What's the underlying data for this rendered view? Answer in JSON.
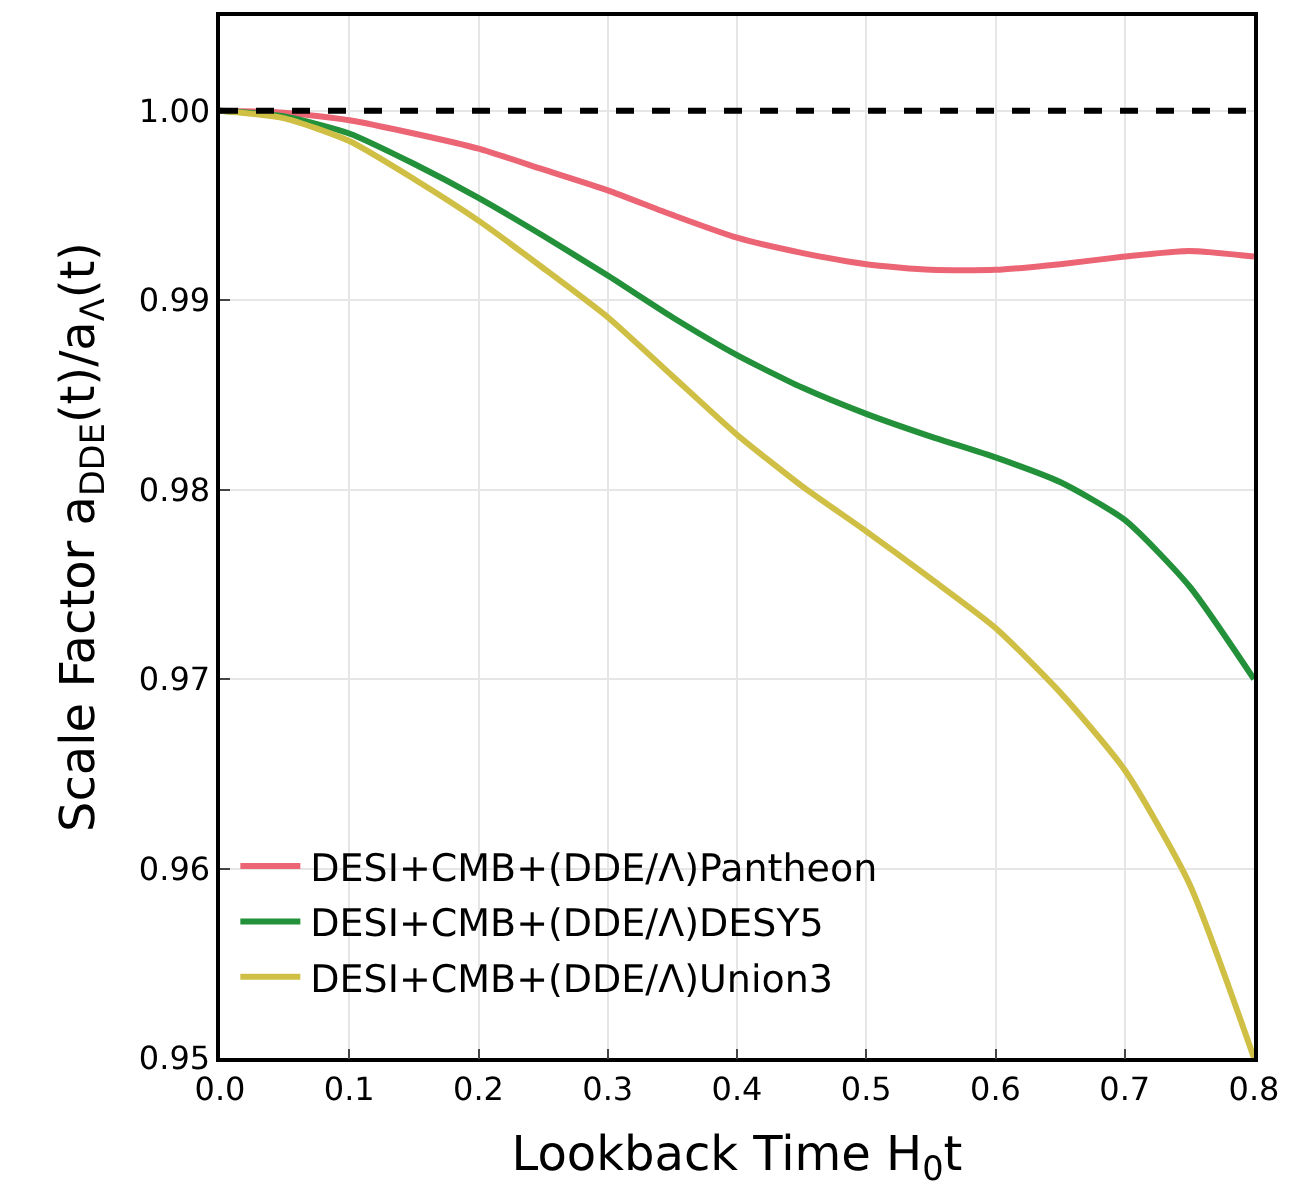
{
  "chart_data": {
    "type": "line",
    "xlabel": "Lookback Time H$_{0}$t",
    "ylabel": "Scale Factor a$_{DDE}$(t)/a$_{Λ}$(t)",
    "series": [
      {
        "name": "DESI+CMB+(DDE/Λ)Pantheon",
        "color": "#eb6575",
        "x": [
          0,
          0.05,
          0.1,
          0.15,
          0.2,
          0.25,
          0.3,
          0.35,
          0.4,
          0.45,
          0.5,
          0.55,
          0.6,
          0.65,
          0.7,
          0.75,
          0.8
        ],
        "values": [
          1.0,
          0.9999,
          0.9995,
          0.9988,
          0.998,
          0.9969,
          0.9958,
          0.9945,
          0.9933,
          0.9925,
          0.9919,
          0.9916,
          0.9916,
          0.9919,
          0.9923,
          0.9926,
          0.9923
        ]
      },
      {
        "name": "DESI+CMB+(DDE/Λ)DESY5",
        "color": "#23903a",
        "x": [
          0,
          0.05,
          0.1,
          0.15,
          0.2,
          0.25,
          0.3,
          0.35,
          0.4,
          0.45,
          0.5,
          0.55,
          0.6,
          0.65,
          0.7,
          0.75,
          0.8
        ],
        "values": [
          1.0,
          0.9997,
          0.9988,
          0.9972,
          0.9954,
          0.9934,
          0.9913,
          0.9891,
          0.9871,
          0.9854,
          0.984,
          0.9828,
          0.9817,
          0.9804,
          0.9784,
          0.9749,
          0.97
        ]
      },
      {
        "name": "DESI+CMB+(DDE/Λ)Union3",
        "color": "#cfbf45",
        "x": [
          0,
          0.05,
          0.1,
          0.15,
          0.2,
          0.25,
          0.3,
          0.35,
          0.4,
          0.45,
          0.5,
          0.55,
          0.6,
          0.65,
          0.7,
          0.75,
          0.8
        ],
        "values": [
          1.0,
          0.9996,
          0.9984,
          0.9964,
          0.9942,
          0.9917,
          0.9891,
          0.986,
          0.9829,
          0.9802,
          0.9778,
          0.9753,
          0.9727,
          0.9693,
          0.9652,
          0.9592,
          0.95
        ]
      }
    ],
    "xlim": [
      0,
      0.8
    ],
    "xticks": [
      {
        "value": 0,
        "label": "0.0"
      },
      0.1,
      0.2,
      0.3,
      0.4,
      0.5,
      0.6,
      0.7,
      0.8
    ],
    "ylim": [
      0.95,
      1.005
    ],
    "yticks": [
      0.95,
      0.96,
      0.97,
      0.98,
      0.99,
      {
        "value": 1,
        "label": "1.00"
      }
    ],
    "ref_lines": [
      {
        "axis": "y",
        "value": 1.0,
        "color": "#000000",
        "line_style": "dashed"
      }
    ],
    "grid": true,
    "legend": "bottom left",
    "line_style": "solid"
  }
}
